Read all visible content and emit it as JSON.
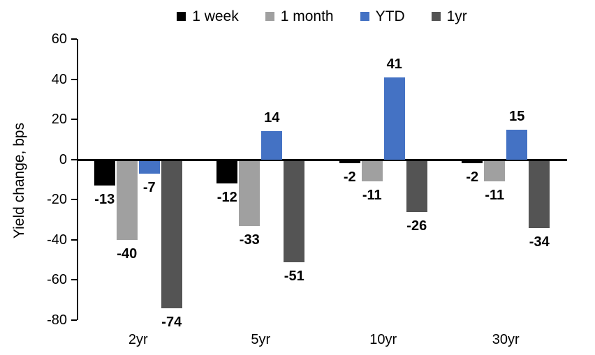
{
  "colors": {
    "background": "#ffffff",
    "axis": "#000000",
    "text": "#000000"
  },
  "chart_data": {
    "type": "bar",
    "title": "",
    "xlabel": "",
    "ylabel": "Yield change, bps",
    "categories": [
      "2yr",
      "5yr",
      "10yr",
      "30yr"
    ],
    "series": [
      {
        "name": "1 week",
        "color": "#000000",
        "values": [
          -13,
          -12,
          -2,
          -2
        ]
      },
      {
        "name": "1 month",
        "color": "#A0A0A0",
        "values": [
          -40,
          -33,
          -11,
          -11
        ]
      },
      {
        "name": "YTD",
        "color": "#4472C4",
        "values": [
          -7,
          14,
          41,
          15
        ]
      },
      {
        "name": "1yr",
        "color": "#545454",
        "values": [
          -74,
          -51,
          -26,
          -34
        ]
      }
    ],
    "ylim": [
      -80,
      60
    ],
    "yticks": [
      60,
      40,
      20,
      0,
      -20,
      -40,
      -60,
      -80
    ],
    "grid": false,
    "legend_position": "top",
    "data_labels": true
  }
}
